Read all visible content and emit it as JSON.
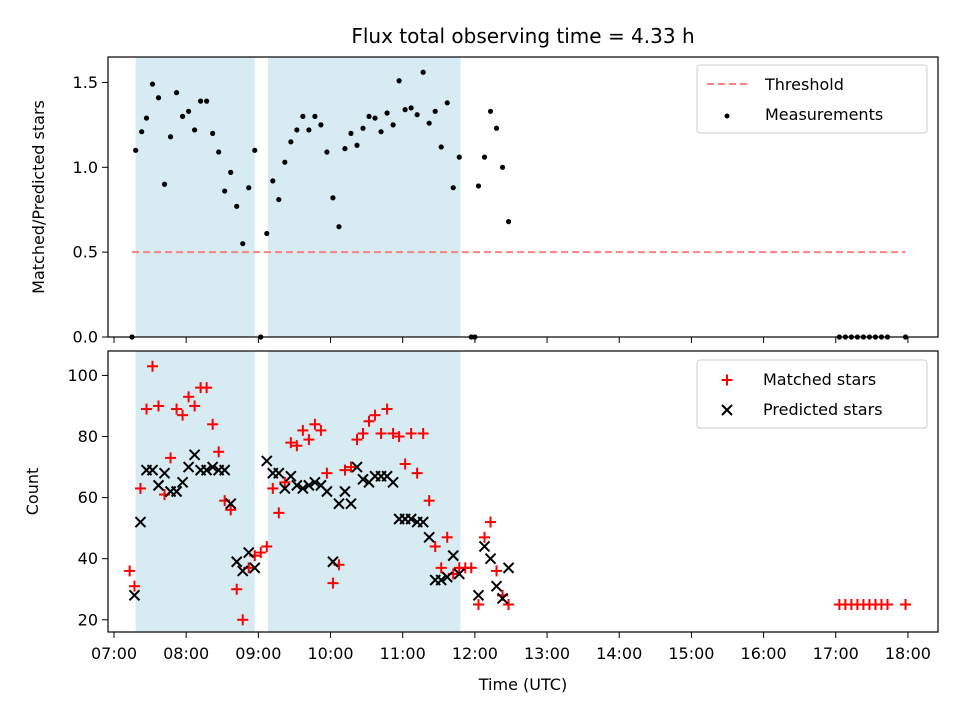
{
  "chart_data": [
    {
      "type": "scatter",
      "title": "Flux total observing time = 4.33 h",
      "ylabel": "Matched/Predicted stars",
      "xlabel": "",
      "xlim": [
        "06:55",
        "18:25"
      ],
      "ylim": [
        0,
        1.65
      ],
      "yticks": [
        0.0,
        0.5,
        1.0,
        1.5
      ],
      "ytick_labels": [
        "0.0",
        "0.5",
        "1.0",
        "1.5"
      ],
      "shaded_intervals": [
        [
          "07:18",
          "08:57"
        ],
        [
          "09:08",
          "11:48"
        ]
      ],
      "threshold": {
        "name": "Threshold",
        "value": 0.5,
        "x_range": [
          "07:15",
          "17:58"
        ],
        "color": "#ff8080"
      },
      "legend": {
        "position": "top-right",
        "entries": [
          "Threshold",
          "Measurements"
        ]
      },
      "series": [
        {
          "name": "Measurements",
          "color": "#000000",
          "marker": "dot",
          "points": [
            [
              "07:15",
              0.0
            ],
            [
              "07:18",
              1.1
            ],
            [
              "07:23",
              1.21
            ],
            [
              "07:27",
              1.29
            ],
            [
              "07:32",
              1.49
            ],
            [
              "07:37",
              1.41
            ],
            [
              "07:42",
              0.9
            ],
            [
              "07:47",
              1.18
            ],
            [
              "07:52",
              1.44
            ],
            [
              "07:57",
              1.3
            ],
            [
              "08:02",
              1.33
            ],
            [
              "08:07",
              1.22
            ],
            [
              "08:12",
              1.39
            ],
            [
              "08:17",
              1.39
            ],
            [
              "08:22",
              1.2
            ],
            [
              "08:27",
              1.09
            ],
            [
              "08:32",
              0.86
            ],
            [
              "08:37",
              0.97
            ],
            [
              "08:42",
              0.77
            ],
            [
              "08:47",
              0.55
            ],
            [
              "08:52",
              0.88
            ],
            [
              "08:57",
              1.1
            ],
            [
              "09:02",
              0.0
            ],
            [
              "09:07",
              0.61
            ],
            [
              "09:12",
              0.92
            ],
            [
              "09:17",
              0.81
            ],
            [
              "09:22",
              1.03
            ],
            [
              "09:27",
              1.15
            ],
            [
              "09:32",
              1.22
            ],
            [
              "09:37",
              1.3
            ],
            [
              "09:42",
              1.22
            ],
            [
              "09:47",
              1.3
            ],
            [
              "09:52",
              1.25
            ],
            [
              "09:57",
              1.09
            ],
            [
              "10:02",
              0.82
            ],
            [
              "10:07",
              0.65
            ],
            [
              "10:12",
              1.11
            ],
            [
              "10:17",
              1.2
            ],
            [
              "10:22",
              1.13
            ],
            [
              "10:27",
              1.23
            ],
            [
              "10:32",
              1.3
            ],
            [
              "10:37",
              1.29
            ],
            [
              "10:42",
              1.21
            ],
            [
              "10:47",
              1.32
            ],
            [
              "10:52",
              1.25
            ],
            [
              "10:57",
              1.51
            ],
            [
              "11:02",
              1.34
            ],
            [
              "11:07",
              1.35
            ],
            [
              "11:12",
              1.31
            ],
            [
              "11:17",
              1.56
            ],
            [
              "11:22",
              1.26
            ],
            [
              "11:27",
              1.33
            ],
            [
              "11:32",
              1.12
            ],
            [
              "11:37",
              1.38
            ],
            [
              "11:42",
              0.88
            ],
            [
              "11:47",
              1.06
            ],
            [
              "11:57",
              0.0
            ],
            [
              "12:00",
              0.0
            ],
            [
              "12:03",
              0.89
            ],
            [
              "12:08",
              1.06
            ],
            [
              "12:13",
              1.33
            ],
            [
              "12:18",
              1.23
            ],
            [
              "12:23",
              1.0
            ],
            [
              "12:28",
              0.68
            ],
            [
              "17:03",
              0.0
            ],
            [
              "17:08",
              0.0
            ],
            [
              "17:13",
              0.0
            ],
            [
              "17:18",
              0.0
            ],
            [
              "17:23",
              0.0
            ],
            [
              "17:28",
              0.0
            ],
            [
              "17:33",
              0.0
            ],
            [
              "17:38",
              0.0
            ],
            [
              "17:43",
              0.0
            ],
            [
              "17:58",
              0.0
            ]
          ]
        }
      ]
    },
    {
      "type": "scatter",
      "title": "",
      "ylabel": "Count",
      "xlabel": "Time (UTC)",
      "xlim": [
        "06:55",
        "18:25"
      ],
      "ylim": [
        16,
        108
      ],
      "yticks": [
        20,
        40,
        60,
        80,
        100
      ],
      "ytick_labels": [
        "20",
        "40",
        "60",
        "80",
        "100"
      ],
      "xticks": [
        "07:00",
        "08:00",
        "09:00",
        "10:00",
        "11:00",
        "12:00",
        "13:00",
        "14:00",
        "15:00",
        "16:00",
        "17:00",
        "18:00"
      ],
      "xtick_labels": [
        "07:00",
        "08:00",
        "09:00",
        "10:00",
        "11:00",
        "12:00",
        "13:00",
        "14:00",
        "15:00",
        "16:00",
        "17:00",
        "18:00"
      ],
      "shaded_intervals": [
        [
          "07:18",
          "08:57"
        ],
        [
          "09:08",
          "11:48"
        ]
      ],
      "legend": {
        "position": "top-right",
        "entries": [
          "Matched stars",
          "Predicted stars"
        ]
      },
      "series": [
        {
          "name": "Matched stars",
          "color": "#ff0000",
          "marker": "plus",
          "points": [
            [
              "07:13",
              36
            ],
            [
              "07:17",
              31
            ],
            [
              "07:22",
              63
            ],
            [
              "07:27",
              89
            ],
            [
              "07:32",
              103
            ],
            [
              "07:37",
              90
            ],
            [
              "07:42",
              61
            ],
            [
              "07:47",
              73
            ],
            [
              "07:52",
              89
            ],
            [
              "07:57",
              87
            ],
            [
              "08:02",
              93
            ],
            [
              "08:07",
              90
            ],
            [
              "08:12",
              96
            ],
            [
              "08:17",
              96
            ],
            [
              "08:22",
              84
            ],
            [
              "08:27",
              75
            ],
            [
              "08:32",
              59
            ],
            [
              "08:37",
              56
            ],
            [
              "08:42",
              30
            ],
            [
              "08:47",
              20
            ],
            [
              "08:52",
              37
            ],
            [
              "08:57",
              41
            ],
            [
              "09:02",
              42
            ],
            [
              "09:07",
              44
            ],
            [
              "09:12",
              63
            ],
            [
              "09:17",
              55
            ],
            [
              "09:22",
              65
            ],
            [
              "09:27",
              78
            ],
            [
              "09:32",
              77
            ],
            [
              "09:37",
              82
            ],
            [
              "09:42",
              79
            ],
            [
              "09:47",
              84
            ],
            [
              "09:52",
              82
            ],
            [
              "09:57",
              68
            ],
            [
              "10:02",
              32
            ],
            [
              "10:07",
              38
            ],
            [
              "10:12",
              69
            ],
            [
              "10:17",
              70
            ],
            [
              "10:22",
              79
            ],
            [
              "10:27",
              81
            ],
            [
              "10:32",
              85
            ],
            [
              "10:37",
              87
            ],
            [
              "10:42",
              81
            ],
            [
              "10:47",
              89
            ],
            [
              "10:52",
              81
            ],
            [
              "10:57",
              80
            ],
            [
              "11:02",
              71
            ],
            [
              "11:07",
              81
            ],
            [
              "11:12",
              68
            ],
            [
              "11:17",
              81
            ],
            [
              "11:22",
              59
            ],
            [
              "11:27",
              44
            ],
            [
              "11:32",
              37
            ],
            [
              "11:37",
              47
            ],
            [
              "11:42",
              35
            ],
            [
              "11:47",
              37
            ],
            [
              "11:52",
              37
            ],
            [
              "11:57",
              37
            ],
            [
              "12:03",
              25
            ],
            [
              "12:08",
              47
            ],
            [
              "12:13",
              52
            ],
            [
              "12:18",
              36
            ],
            [
              "12:23",
              28
            ],
            [
              "12:28",
              25
            ],
            [
              "17:03",
              25
            ],
            [
              "17:08",
              25
            ],
            [
              "17:13",
              25
            ],
            [
              "17:18",
              25
            ],
            [
              "17:23",
              25
            ],
            [
              "17:28",
              25
            ],
            [
              "17:33",
              25
            ],
            [
              "17:38",
              25
            ],
            [
              "17:43",
              25
            ],
            [
              "17:58",
              25
            ]
          ]
        },
        {
          "name": "Predicted stars",
          "color": "#000000",
          "marker": "x",
          "points": [
            [
              "07:17",
              28
            ],
            [
              "07:22",
              52
            ],
            [
              "07:27",
              69
            ],
            [
              "07:32",
              69
            ],
            [
              "07:37",
              64
            ],
            [
              "07:42",
              68
            ],
            [
              "07:47",
              62
            ],
            [
              "07:52",
              62
            ],
            [
              "07:57",
              65
            ],
            [
              "08:02",
              70
            ],
            [
              "08:07",
              74
            ],
            [
              "08:12",
              69
            ],
            [
              "08:17",
              69
            ],
            [
              "08:22",
              70
            ],
            [
              "08:27",
              69
            ],
            [
              "08:32",
              69
            ],
            [
              "08:37",
              58
            ],
            [
              "08:42",
              39
            ],
            [
              "08:47",
              36
            ],
            [
              "08:52",
              42
            ],
            [
              "08:57",
              37
            ],
            [
              "09:07",
              72
            ],
            [
              "09:12",
              68
            ],
            [
              "09:17",
              68
            ],
            [
              "09:22",
              63
            ],
            [
              "09:27",
              67
            ],
            [
              "09:32",
              64
            ],
            [
              "09:37",
              63
            ],
            [
              "09:42",
              64
            ],
            [
              "09:47",
              65
            ],
            [
              "09:52",
              64
            ],
            [
              "09:57",
              62
            ],
            [
              "10:02",
              39
            ],
            [
              "10:07",
              58
            ],
            [
              "10:12",
              62
            ],
            [
              "10:17",
              58
            ],
            [
              "10:22",
              70
            ],
            [
              "10:27",
              66
            ],
            [
              "10:32",
              65
            ],
            [
              "10:37",
              67
            ],
            [
              "10:42",
              67
            ],
            [
              "10:47",
              67
            ],
            [
              "10:52",
              65
            ],
            [
              "10:57",
              53
            ],
            [
              "11:02",
              53
            ],
            [
              "11:07",
              53
            ],
            [
              "11:12",
              52
            ],
            [
              "11:17",
              52
            ],
            [
              "11:22",
              47
            ],
            [
              "11:27",
              33
            ],
            [
              "11:32",
              33
            ],
            [
              "11:37",
              34
            ],
            [
              "11:42",
              41
            ],
            [
              "11:47",
              35
            ],
            [
              "12:03",
              28
            ],
            [
              "12:08",
              44
            ],
            [
              "12:13",
              40
            ],
            [
              "12:18",
              31
            ],
            [
              "12:23",
              27
            ],
            [
              "12:28",
              37
            ]
          ]
        }
      ]
    }
  ]
}
